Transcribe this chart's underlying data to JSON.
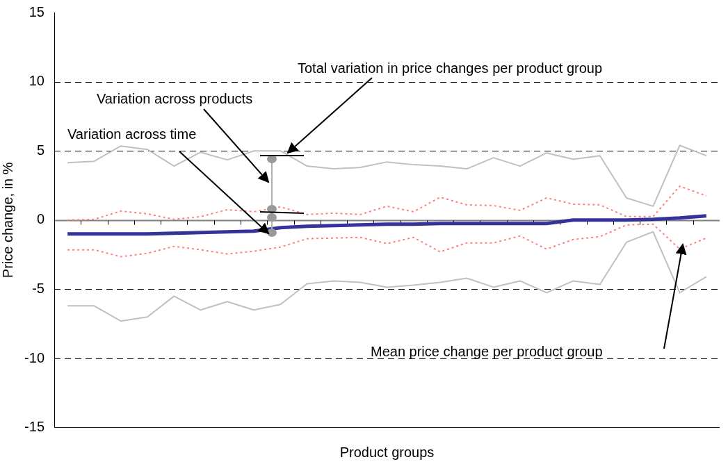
{
  "chart_data": {
    "type": "line",
    "xlabel": "Product groups",
    "ylabel": "Price change, in %",
    "categories": [
      null,
      null,
      null,
      null,
      null,
      null,
      null,
      null,
      null,
      null,
      null,
      null,
      null,
      null,
      null,
      null,
      null,
      null,
      null,
      null,
      null,
      null,
      null,
      null,
      null
    ],
    "series": [
      {
        "color": "#c0c0c0",
        "line_style": "solid",
        "values": [
          4.15,
          4.25,
          5.35,
          5.1,
          3.9,
          4.9,
          4.35,
          5.0,
          5.0,
          3.9,
          3.7,
          3.8,
          4.2,
          4.0,
          3.9,
          3.7,
          4.5,
          3.9,
          4.85,
          4.4,
          4.65,
          1.6,
          1.0,
          5.4,
          4.65
        ]
      },
      {
        "color": "#ff8080",
        "line_style": "dotted",
        "values": [
          0,
          0.05,
          0.65,
          0.45,
          0.05,
          0.25,
          0.75,
          0.6,
          0.95,
          0.4,
          0.5,
          0.4,
          1.0,
          0.6,
          1.65,
          1.1,
          1.05,
          0.7,
          1.6,
          1.15,
          1.1,
          0.25,
          0.25,
          2.45,
          1.75
        ]
      },
      {
        "color": "#333399",
        "line_style": "solid",
        "values": [
          -1,
          -1,
          -1,
          -1,
          -0.95,
          -0.9,
          -0.85,
          -0.8,
          -0.55,
          -0.45,
          -0.4,
          -0.35,
          -0.3,
          -0.3,
          -0.25,
          -0.25,
          -0.25,
          -0.25,
          -0.25,
          0,
          0,
          0,
          0.05,
          0.15,
          0.3
        ]
      },
      {
        "color": "#ff8080",
        "line_style": "dotted",
        "values": [
          -2.15,
          -2.15,
          -2.65,
          -2.4,
          -1.9,
          -2.15,
          -2.45,
          -2.25,
          -1.95,
          -1.35,
          -1.3,
          -1.25,
          -1.7,
          -1.25,
          -2.3,
          -1.65,
          -1.65,
          -1.15,
          -2.1,
          -1.4,
          -1.2,
          -0.35,
          -0.3,
          -2.1,
          -1.3
        ]
      },
      {
        "color": "#c0c0c0",
        "line_style": "solid",
        "values": [
          -6.2,
          -6.2,
          -7.3,
          -7.0,
          -5.5,
          -6.5,
          -5.9,
          -6.5,
          -6.1,
          -4.6,
          -4.4,
          -4.5,
          -4.85,
          -4.7,
          -4.5,
          -4.2,
          -4.85,
          -4.4,
          -5.25,
          -4.4,
          -4.65,
          -1.6,
          -0.85,
          -5.25,
          -4.1
        ]
      }
    ],
    "ylim": [
      -15,
      15
    ],
    "yticks": [
      -15,
      -10,
      -5,
      0,
      5,
      10,
      15
    ],
    "grid": "y",
    "legend": false,
    "marker": "none",
    "annotations": [
      "Total variation in price changes per product group",
      "Variation across products",
      "Variation across time",
      "Mean price change per product group"
    ]
  }
}
